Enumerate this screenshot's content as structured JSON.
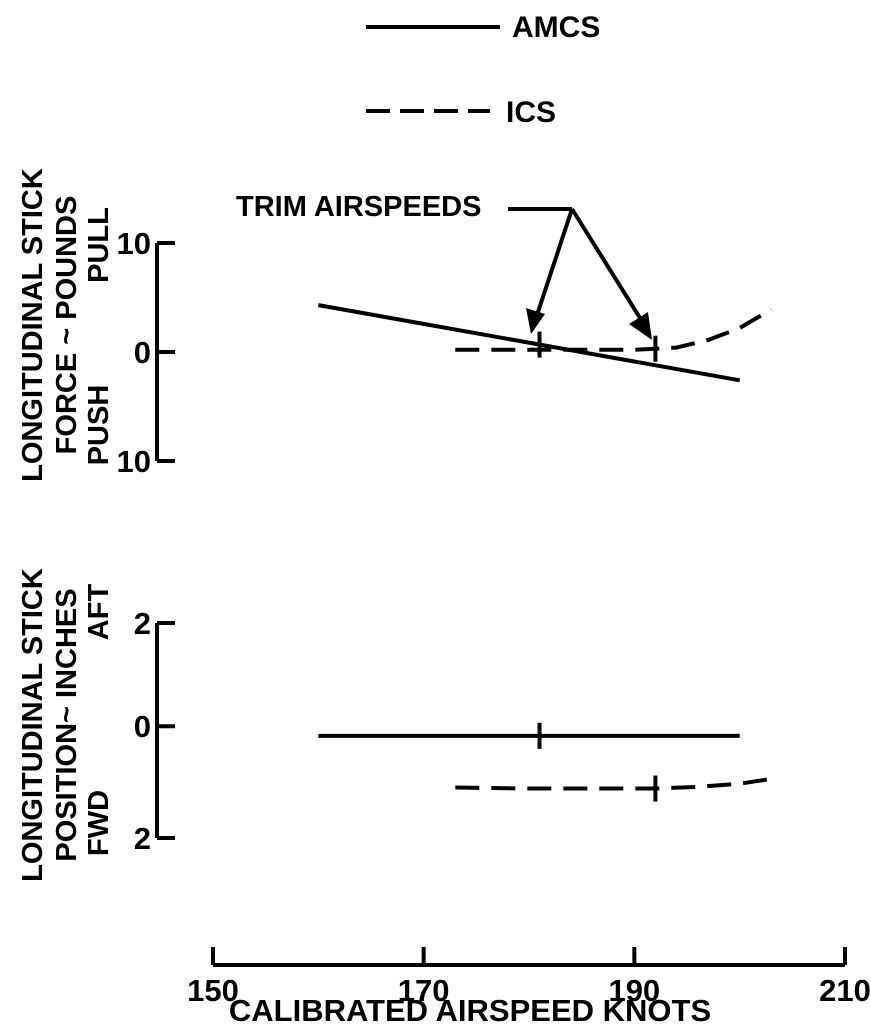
{
  "chart_data": [
    {
      "type": "line",
      "ylabel_lines": [
        "LONGITUDINAL STICK",
        "FORCE ~ POUNDS"
      ],
      "y_direction_labels": {
        "positive": "PULL",
        "negative": "PUSH"
      },
      "y_tick_labels": [
        "10",
        "0",
        "10"
      ],
      "y_ticks": [
        10,
        0,
        -10
      ],
      "ylim": [
        -10,
        10
      ],
      "annotation": "TRIM AIRSPEEDS",
      "series": [
        {
          "name": "AMCS",
          "style": "solid",
          "x": [
            160,
            200
          ],
          "y": [
            4.3,
            -2.6
          ],
          "trim_airspeed": 181
        },
        {
          "name": "ICS",
          "style": "dashed",
          "x": [
            173,
            178,
            182,
            186,
            190,
            194,
            197,
            200,
            203
          ],
          "y": [
            0.2,
            0.2,
            0.2,
            0.2,
            0.2,
            0.4,
            1.1,
            2.2,
            3.9
          ],
          "trim_airspeed": 192
        }
      ]
    },
    {
      "type": "line",
      "ylabel_lines": [
        "LONGITUDINAL STICK",
        "POSITION~ INCHES"
      ],
      "y_direction_labels": {
        "positive": "AFT",
        "negative": "FWD"
      },
      "y_tick_labels": [
        "2",
        "0",
        "2"
      ],
      "y_ticks": [
        2,
        0,
        -2
      ],
      "ylim": [
        -2,
        2
      ],
      "series": [
        {
          "name": "AMCS",
          "style": "solid",
          "x": [
            160,
            200
          ],
          "y": [
            -0.1,
            -0.1
          ],
          "trim_airspeed": 181
        },
        {
          "name": "ICS",
          "style": "dashed",
          "x": [
            173,
            180,
            186,
            192,
            196,
            200,
            203
          ],
          "y": [
            -1.06,
            -1.08,
            -1.08,
            -1.08,
            -1.05,
            -0.99,
            -0.9
          ],
          "trim_airspeed": 192
        }
      ]
    }
  ],
  "x_axis": {
    "label": "CALIBRATED AIRSPEED KNOTS",
    "ticks": [
      150,
      170,
      190,
      210
    ],
    "tick_labels": [
      "150",
      "170",
      "190",
      "210"
    ],
    "range": [
      150,
      210
    ]
  },
  "legend": {
    "placement": "top-center",
    "items": [
      {
        "label": "AMCS",
        "style": "solid"
      },
      {
        "label": "ICS",
        "style": "dashed"
      }
    ]
  }
}
